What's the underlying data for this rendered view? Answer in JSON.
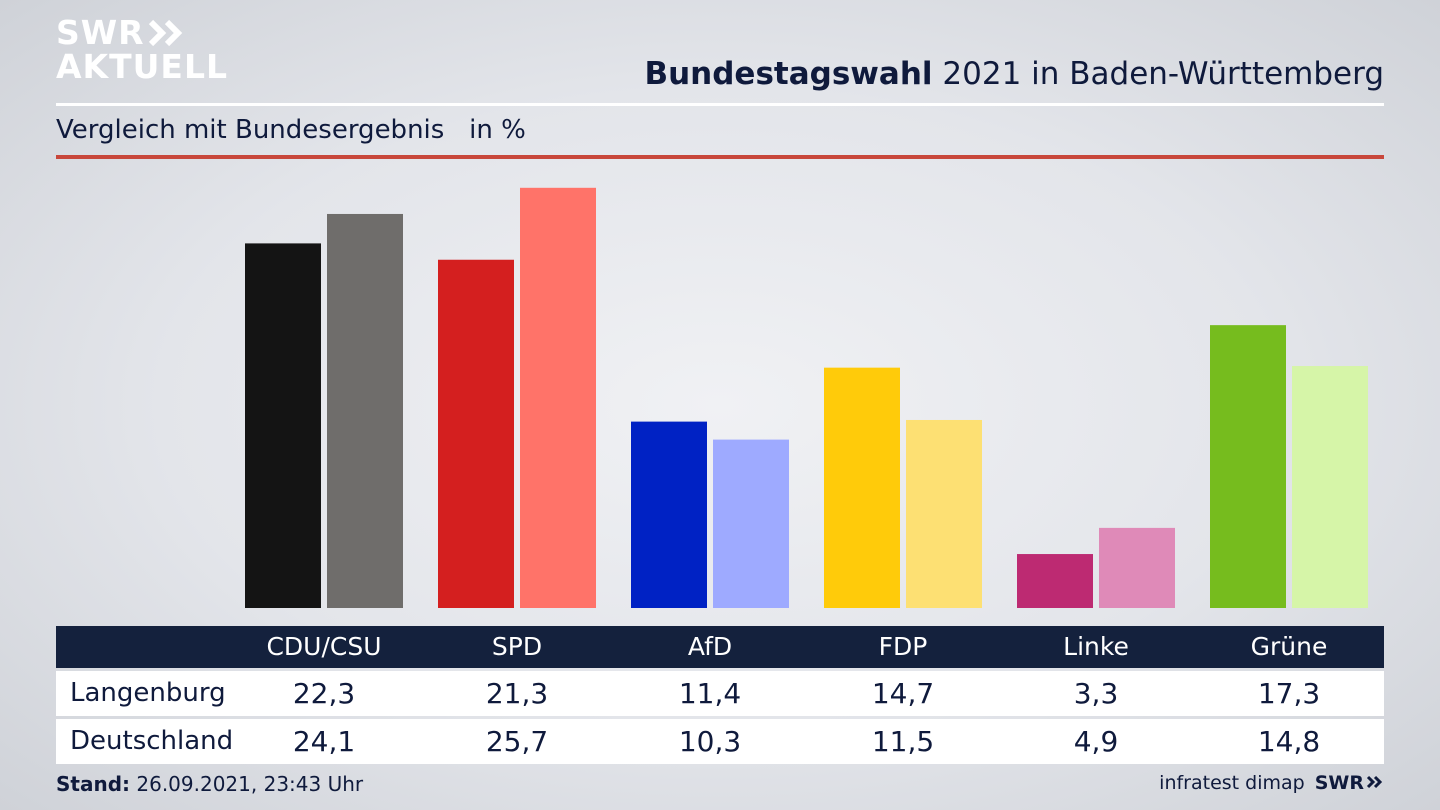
{
  "logo": {
    "line1": "SWR",
    "line2": "AKTUELL",
    "footer_logo": "SWR"
  },
  "header": {
    "title_bold": "Bundestagswahl",
    "title_rest": " 2021 in Baden-Württemberg",
    "subtitle": "Vergleich mit Bundesergebnis   in %"
  },
  "colors": {
    "accent_rule": "#c8473b",
    "table_header_bg": "#14213d"
  },
  "chart_data": {
    "type": "bar",
    "categories": [
      "CDU/CSU",
      "SPD",
      "AfD",
      "FDP",
      "Linke",
      "Grüne"
    ],
    "series": [
      {
        "name": "Langenburg",
        "values": [
          22.3,
          21.3,
          11.4,
          14.7,
          3.3,
          17.3
        ],
        "colors": [
          "#141414",
          "#d41f1f",
          "#0022c4",
          "#ffcb0a",
          "#bd2a72",
          "#76bc1e"
        ]
      },
      {
        "name": "Deutschland",
        "values": [
          24.1,
          25.7,
          10.3,
          11.5,
          4.9,
          14.8
        ],
        "colors": [
          "#6f6d6b",
          "#ff7369",
          "#9eaaff",
          "#fde073",
          "#df8ab8",
          "#d6f5a8"
        ]
      }
    ],
    "value_labels": [
      [
        "22,3",
        "21,3",
        "11,4",
        "14,7",
        "3,3",
        "17,3"
      ],
      [
        "24,1",
        "25,7",
        "10,3",
        "11,5",
        "4,9",
        "14,8"
      ]
    ],
    "grid": false,
    "legend": "table-below"
  },
  "table": {
    "headers": [
      "CDU/CSU",
      "SPD",
      "AfD",
      "FDP",
      "Linke",
      "Grüne"
    ],
    "rows": [
      {
        "label": "Langenburg",
        "values": [
          "22,3",
          "21,3",
          "11,4",
          "14,7",
          "3,3",
          "17,3"
        ]
      },
      {
        "label": "Deutschland",
        "values": [
          "24,1",
          "25,7",
          "10,3",
          "11,5",
          "4,9",
          "14,8"
        ]
      }
    ]
  },
  "footer": {
    "stand_label": "Stand:",
    "stand_value": " 26.09.2021, 23:43 Uhr",
    "source": "infratest dimap"
  }
}
